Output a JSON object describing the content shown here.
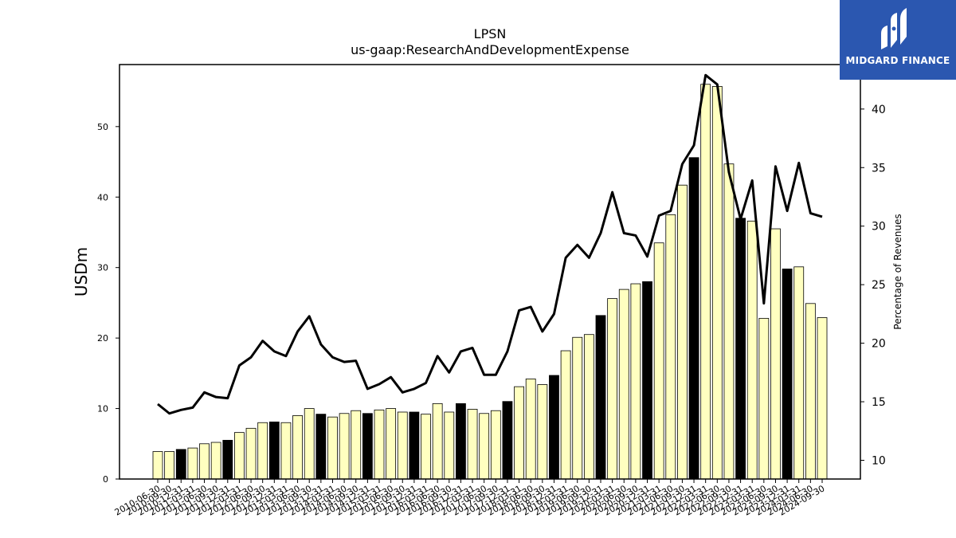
{
  "chart_data": {
    "type": "bar",
    "title": "LPSN",
    "subtitle": "us-gaap:ResearchAndDevelopmentExpense",
    "ylabel": "USDm",
    "y2label": "Percentage of Revenues",
    "ylim": [
      0,
      58.8
    ],
    "y2lim": [
      8.4,
      43.8
    ],
    "yticks": [
      0,
      10,
      20,
      30,
      40,
      50
    ],
    "y2ticks": [
      10,
      15,
      20,
      25,
      30,
      35,
      40
    ],
    "colors": {
      "quarter_bar": "#ffffc0",
      "annual_bar": "#000000",
      "line": "#000000"
    },
    "categories": [
      "2010-06-30",
      "2010-09-30",
      "2010-12-31",
      "2011-03-31",
      "2011-06-30",
      "2011-09-30",
      "2011-12-31",
      "2012-03-31",
      "2012-06-30",
      "2012-09-30",
      "2012-12-31",
      "2013-03-31",
      "2013-06-30",
      "2013-09-30",
      "2013-12-31",
      "2014-03-31",
      "2014-06-30",
      "2014-09-30",
      "2014-12-31",
      "2015-03-31",
      "2015-06-30",
      "2015-09-30",
      "2015-12-31",
      "2016-03-31",
      "2016-06-30",
      "2016-09-30",
      "2016-12-31",
      "2017-03-31",
      "2017-06-30",
      "2017-09-30",
      "2017-12-31",
      "2018-03-31",
      "2018-06-30",
      "2018-09-30",
      "2018-12-31",
      "2019-03-31",
      "2019-06-30",
      "2019-09-30",
      "2019-12-31",
      "2020-03-31",
      "2020-06-30",
      "2020-09-30",
      "2020-12-31",
      "2021-03-31",
      "2021-06-30",
      "2021-09-30",
      "2021-12-31",
      "2022-03-31",
      "2022-06-30",
      "2022-09-30",
      "2022-12-31",
      "2023-03-31",
      "2023-06-30",
      "2023-09-30",
      "2023-12-31",
      "2024-03-31",
      "2024-06-30",
      "2024-09-30"
    ],
    "series": [
      {
        "type": "bar",
        "values": [
          3.9,
          3.9,
          4.2,
          4.4,
          5.0,
          5.2,
          5.5,
          6.6,
          7.2,
          8.0,
          8.1,
          8.0,
          9.0,
          10.0,
          9.2,
          8.8,
          9.3,
          9.7,
          9.3,
          9.8,
          10.0,
          9.5,
          9.5,
          9.2,
          10.7,
          9.5,
          10.7,
          9.9,
          9.3,
          9.7,
          11.0,
          13.1,
          14.2,
          13.4,
          14.7,
          18.2,
          20.1,
          20.5,
          23.2,
          25.6,
          26.9,
          27.7,
          28.0,
          33.5,
          37.5,
          41.7,
          45.6,
          56.0,
          55.7,
          44.7,
          37.0,
          36.6,
          22.8,
          35.5,
          29.8,
          30.1,
          24.9,
          22.9
        ],
        "annual": [
          false,
          false,
          true,
          false,
          false,
          false,
          true,
          false,
          false,
          false,
          true,
          false,
          false,
          false,
          true,
          false,
          false,
          false,
          true,
          false,
          false,
          false,
          true,
          false,
          false,
          false,
          true,
          false,
          false,
          false,
          true,
          false,
          false,
          false,
          true,
          false,
          false,
          false,
          true,
          false,
          false,
          false,
          true,
          false,
          false,
          false,
          true,
          false,
          false,
          false,
          true,
          false,
          false,
          false,
          true,
          false,
          false,
          false
        ]
      },
      {
        "type": "line",
        "axis": "right",
        "values": [
          14.8,
          14.0,
          14.3,
          14.5,
          15.8,
          15.4,
          15.3,
          18.1,
          18.8,
          20.2,
          19.3,
          18.9,
          21.0,
          22.3,
          19.9,
          18.8,
          18.4,
          18.5,
          16.1,
          16.5,
          17.1,
          15.8,
          16.1,
          16.6,
          18.9,
          17.5,
          19.3,
          19.6,
          17.3,
          17.3,
          19.3,
          22.8,
          23.1,
          21.0,
          22.5,
          27.3,
          28.4,
          27.3,
          29.4,
          32.9,
          29.4,
          29.2,
          27.4,
          30.9,
          31.3,
          35.3,
          36.9,
          42.9,
          42.1,
          34.6,
          30.6,
          33.9,
          23.4,
          35.1,
          31.3,
          35.4,
          31.1,
          30.8
        ]
      }
    ]
  },
  "logo": {
    "text": "MIDGARD FINANCE"
  }
}
